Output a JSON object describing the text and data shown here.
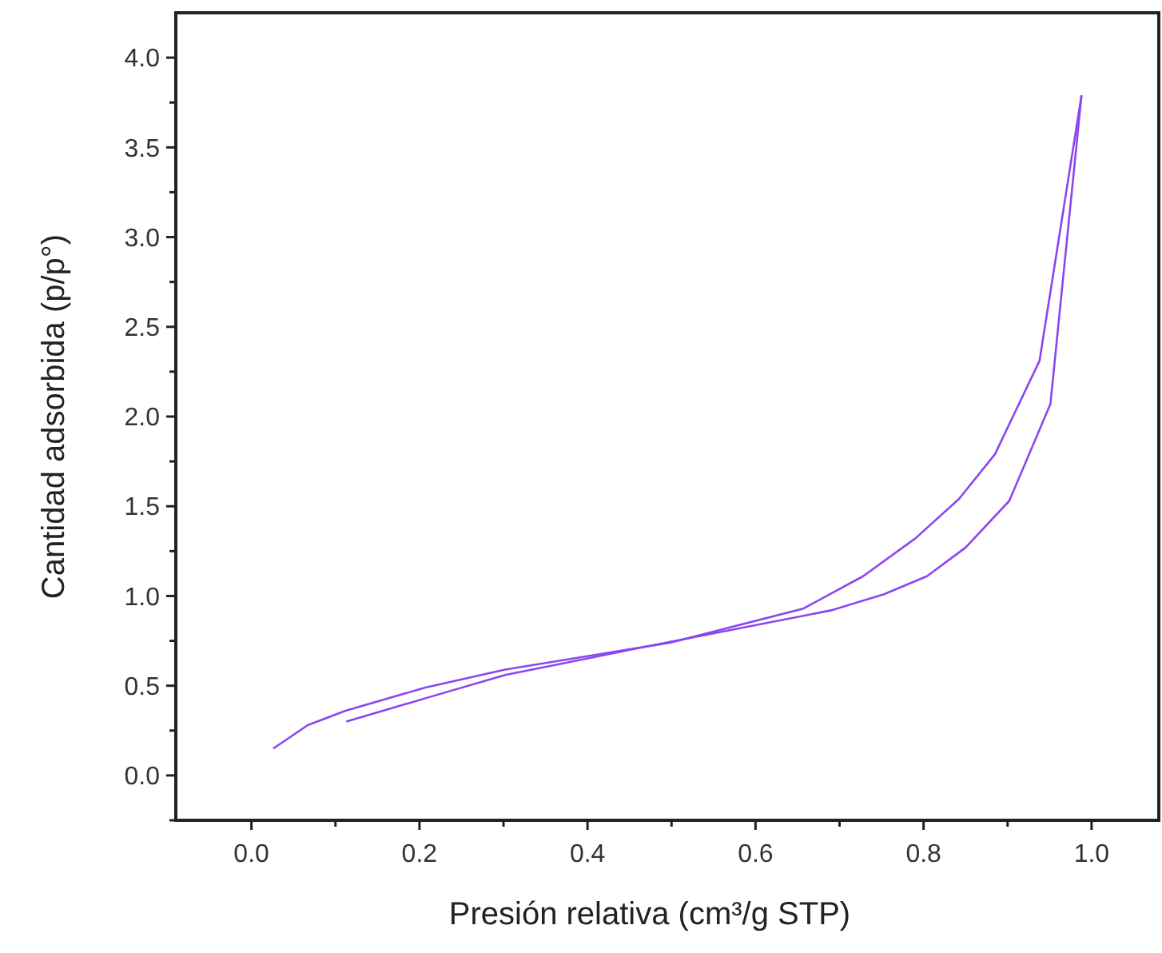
{
  "chart_data": {
    "type": "line",
    "xlabel": "Presión relativa (cm³/g STP)",
    "ylabel": "Cantidad adsorbida (p/p°)",
    "xlim": [
      -0.09,
      1.08
    ],
    "ylim": [
      -0.25,
      4.25
    ],
    "xticks": [
      {
        "value": 0,
        "label": "0.0"
      },
      {
        "value": 0.1,
        "label": null
      },
      {
        "value": 0.2,
        "label": "0.2"
      },
      {
        "value": 0.3,
        "label": null
      },
      {
        "value": 0.4,
        "label": "0.4"
      },
      {
        "value": 0.5,
        "label": null
      },
      {
        "value": 0.6,
        "label": "0.6"
      },
      {
        "value": 0.7,
        "label": null
      },
      {
        "value": 0.8,
        "label": "0.8"
      },
      {
        "value": 0.9,
        "label": null
      },
      {
        "value": 1,
        "label": "1.0"
      }
    ],
    "yticks": [
      {
        "value": -0.25,
        "label": null
      },
      {
        "value": 0,
        "label": "0.0"
      },
      {
        "value": 0.25,
        "label": null
      },
      {
        "value": 0.5,
        "label": "0.5"
      },
      {
        "value": 0.75,
        "label": null
      },
      {
        "value": 1,
        "label": "1.0"
      },
      {
        "value": 1.25,
        "label": null
      },
      {
        "value": 1.5,
        "label": "1.5"
      },
      {
        "value": 1.75,
        "label": null
      },
      {
        "value": 2,
        "label": "2.0"
      },
      {
        "value": 2.25,
        "label": null
      },
      {
        "value": 2.5,
        "label": "2.5"
      },
      {
        "value": 2.75,
        "label": null
      },
      {
        "value": 3,
        "label": "3.0"
      },
      {
        "value": 3.25,
        "label": null
      },
      {
        "value": 3.5,
        "label": "3.5"
      },
      {
        "value": 3.75,
        "label": null
      },
      {
        "value": 4,
        "label": "4.0"
      }
    ],
    "grid": false,
    "line_style": "solid",
    "series": [
      {
        "color": "#8c45f0",
        "x": [
          0.026,
          0.067,
          0.112,
          0.207,
          0.302,
          0.499,
          0.657,
          0.728,
          0.79,
          0.842,
          0.885,
          0.938,
          0.988
        ],
        "values": [
          0.15,
          0.28,
          0.36,
          0.49,
          0.59,
          0.74,
          0.93,
          1.11,
          1.32,
          1.54,
          1.79,
          2.31,
          3.79
        ]
      },
      {
        "color": "#8c45f0",
        "x": [
          0.113,
          0.207,
          0.302,
          0.398,
          0.461,
          0.69,
          0.753,
          0.804,
          0.85,
          0.902,
          0.951,
          0.988
        ],
        "values": [
          0.3,
          0.43,
          0.56,
          0.65,
          0.71,
          0.92,
          1.01,
          1.11,
          1.27,
          1.53,
          2.07,
          3.79
        ]
      }
    ]
  }
}
